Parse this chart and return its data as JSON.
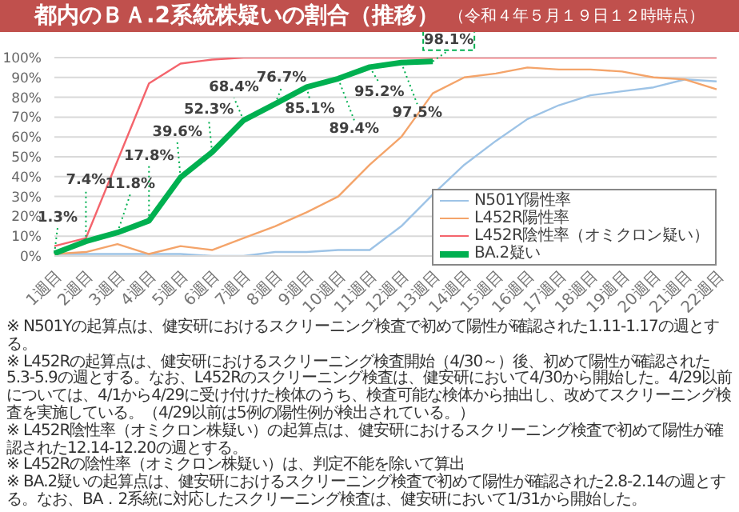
{
  "chart_data": {
    "type": "line",
    "title": "都内のＢＡ.2系統株疑いの割合（推移）",
    "subtitle": "（令和４年５月１９日１２時時点）",
    "categories": [
      "1週目",
      "2週目",
      "3週目",
      "4週目",
      "5週目",
      "6週目",
      "7週目",
      "8週目",
      "9週目",
      "10週目",
      "11週目",
      "12週目",
      "13週目",
      "14週目",
      "15週目",
      "16週目",
      "17週目",
      "18週目",
      "19週目",
      "20週目",
      "21週目",
      "22週目"
    ],
    "series": [
      {
        "name": "N501Y陽性率",
        "color": "#9dc3e6",
        "values": [
          1,
          1,
          1,
          1,
          1,
          0,
          0,
          2,
          2,
          3,
          3,
          15,
          31,
          46,
          58,
          69,
          76,
          81,
          83,
          85,
          89,
          88
        ]
      },
      {
        "name": "L452R陽性率",
        "color": "#f4a46a",
        "values": [
          1,
          2,
          6,
          1,
          5,
          3,
          9,
          15,
          22,
          30,
          46,
          60,
          82,
          90,
          92,
          95,
          94,
          94,
          93,
          90,
          89,
          84
        ]
      },
      {
        "name": "L452R陰性率（オミクロン疑い）",
        "color": "#f4646c",
        "values": [
          5,
          9,
          48,
          87,
          97,
          99,
          100,
          100,
          100,
          100,
          100,
          100,
          100,
          100,
          100,
          100,
          100,
          100,
          100,
          100,
          100,
          100
        ]
      },
      {
        "name": "BA.2疑い",
        "color": "#00b050",
        "values": [
          1.3,
          7.4,
          11.8,
          17.8,
          39.6,
          52.3,
          68.4,
          76.7,
          85.1,
          89.4,
          95.2,
          97.5,
          98.1,
          null,
          null,
          null,
          null,
          null,
          null,
          null,
          null,
          null
        ],
        "value_labels": [
          "1.3%",
          "7.4%",
          "11.8%",
          "17.8%",
          "39.6%",
          "52.3%",
          "68.4%",
          "76.7%",
          "85.1%",
          "89.4%",
          "95.2%",
          "97.5%",
          "98.1%",
          null,
          null,
          null,
          null,
          null,
          null,
          null,
          null,
          null
        ]
      }
    ],
    "ylim": [
      0,
      100
    ],
    "yticks": [
      {
        "value": 0,
        "label": "0%"
      },
      {
        "value": 10,
        "label": "10%"
      },
      {
        "value": 20,
        "label": "20%"
      },
      {
        "value": 30,
        "label": "30%"
      },
      {
        "value": 40,
        "label": "40%"
      },
      {
        "value": 50,
        "label": "50%"
      },
      {
        "value": 60,
        "label": "60%"
      },
      {
        "value": 70,
        "label": "70%"
      },
      {
        "value": 80,
        "label": "80%"
      },
      {
        "value": 90,
        "label": "90%"
      },
      {
        "value": 100,
        "label": "100%"
      }
    ],
    "grid": "y",
    "legend": "bottom right",
    "marker": "none",
    "annotations": [
      "※ N501Yの起算点は、健安研におけるスクリーニング検査で初めて陽性が確認された1.11-1.17の週とする。",
      "※ L452Rの起算点は、健安研におけるスクリーニング検査開始（4/30～）後、初めて陽性が確認された5.3-5.9の週とする。なお、L452Rのスクリーニング検査は、健安研において4/30から開始した。4/29以前については、4/1から4/29に受け付けた検体のうち、検査可能な検体から抽出し、改めてスクリーニング検査を実施している。（4/29以前は5例の陽性例が検出されている。）",
      "※ L452R陰性率（オミクロン株疑い）の起算点は、健安研におけるスクリーニング検査で初めて陽性が確認された12.14-12.20の週とする。",
      "※ L452Rの陰性率（オミクロン株疑い）は、判定不能を除いて算出",
      "※ BA.2疑いの起算点は、健安研におけるスクリーニング検査で初めて陽性が確認された2.8-2.14の週とする。なお、BA．2系統に対応したスクリーニング検査は、健安研において1/31から開始した。"
    ]
  }
}
